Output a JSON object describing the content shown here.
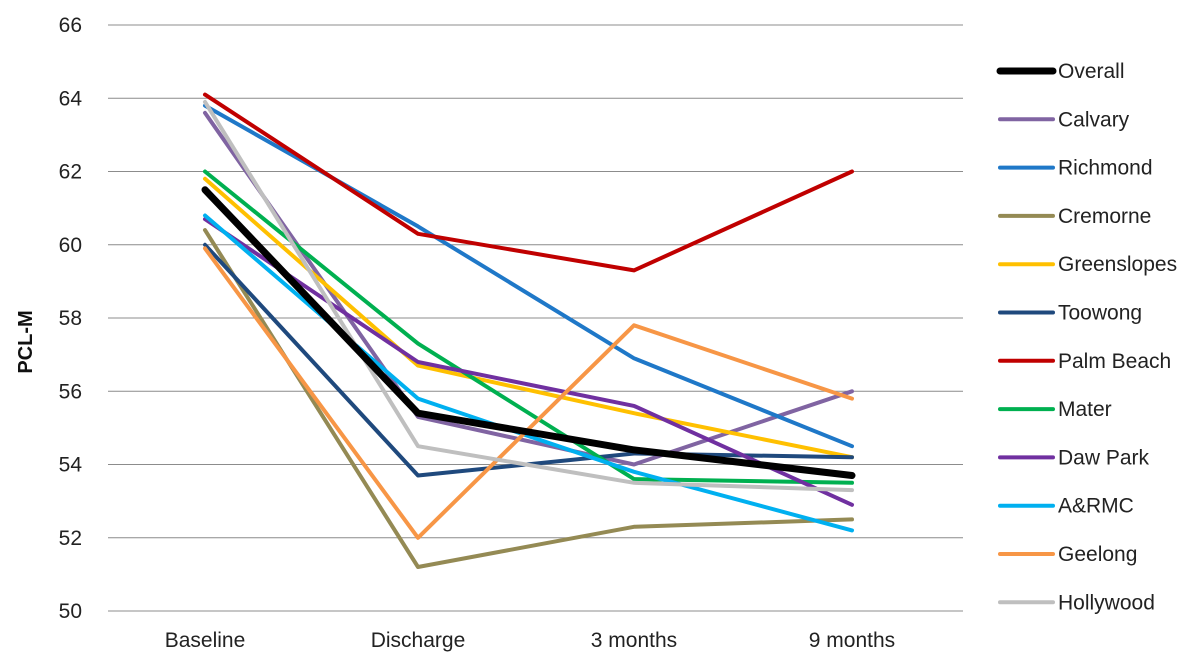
{
  "chart_data": {
    "type": "line",
    "title": "",
    "xlabel": "",
    "ylabel": "PCL-M",
    "ylim": [
      50,
      66
    ],
    "yticks": [
      50,
      52,
      54,
      56,
      58,
      60,
      62,
      64,
      66
    ],
    "grid": "horizontal",
    "legend_position": "right",
    "categories": [
      "Baseline",
      "Discharge",
      "3 months",
      "9 months"
    ],
    "series": [
      {
        "name": "Overall",
        "color": "#000000",
        "values": [
          61.5,
          55.4,
          54.4,
          53.7
        ]
      },
      {
        "name": "Calvary",
        "color": "#8064a2",
        "values": [
          63.6,
          55.3,
          54.0,
          56.0
        ]
      },
      {
        "name": "Richmond",
        "color": "#1f78c8",
        "values": [
          63.8,
          60.5,
          56.9,
          54.5
        ]
      },
      {
        "name": "Cremorne",
        "color": "#948a54",
        "values": [
          60.4,
          51.2,
          52.3,
          52.5
        ]
      },
      {
        "name": "Greenslopes",
        "color": "#ffc000",
        "values": [
          61.8,
          56.7,
          55.4,
          54.2
        ]
      },
      {
        "name": "Toowong",
        "color": "#1f497d",
        "values": [
          60.0,
          53.7,
          54.3,
          54.2
        ]
      },
      {
        "name": "Palm Beach",
        "color": "#c00000",
        "values": [
          64.1,
          60.3,
          59.3,
          62.0
        ]
      },
      {
        "name": "Mater",
        "color": "#00b050",
        "values": [
          62.0,
          57.3,
          53.6,
          53.5
        ]
      },
      {
        "name": "Daw Park",
        "color": "#7030a0",
        "values": [
          60.7,
          56.8,
          55.6,
          52.9
        ]
      },
      {
        "name": "A&RMC",
        "color": "#00b0f0",
        "values": [
          60.8,
          55.8,
          53.8,
          52.2
        ]
      },
      {
        "name": "Geelong",
        "color": "#f79646",
        "values": [
          59.9,
          52.0,
          57.8,
          55.8
        ]
      },
      {
        "name": "Hollywood",
        "color": "#bfbfbf",
        "values": [
          63.9,
          54.5,
          53.5,
          53.3
        ]
      }
    ]
  }
}
